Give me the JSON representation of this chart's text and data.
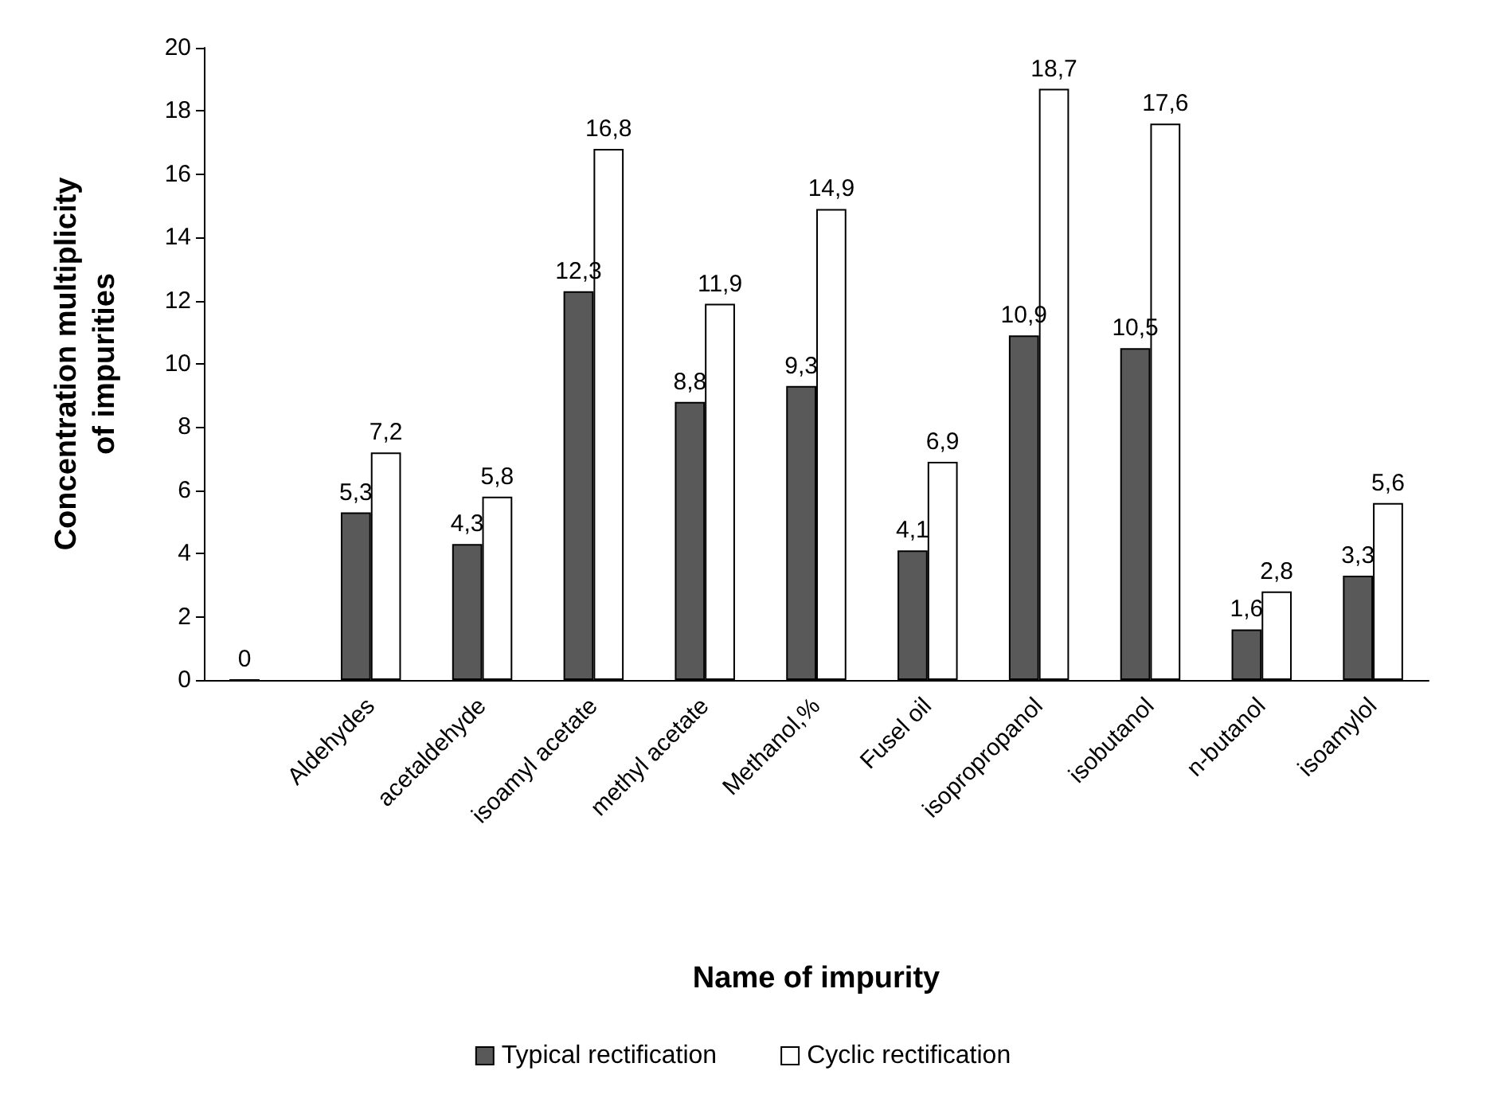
{
  "chart_data": {
    "type": "bar",
    "xlabel": "Name of impurity",
    "ylabel": "Concentration multiplicity\nof impurities",
    "categories": [
      null,
      "Aldehydes",
      "acetaldehyde",
      "isoamyl acetate",
      "methyl acetate",
      "Methanol,%",
      "Fusel oil",
      "isopropropanol",
      "isobutanol",
      "n-butanol",
      "isoamylol"
    ],
    "series": [
      {
        "name": "Typical rectification",
        "color": "#595959",
        "values": [
          0,
          5.3,
          4.3,
          12.3,
          8.8,
          9.3,
          4.1,
          10.9,
          10.5,
          1.6,
          3.3
        ],
        "value_labels": [
          "0",
          "5,3",
          "4,3",
          "12,3",
          "8,8",
          "9,3",
          "4,1",
          "10,9",
          "10,5",
          "1,6",
          "3,3"
        ]
      },
      {
        "name": "Cyclic rectification",
        "color": "#ffffff",
        "values": [
          null,
          7.2,
          5.8,
          16.8,
          11.9,
          14.9,
          6.9,
          18.7,
          17.6,
          2.8,
          5.6
        ],
        "value_labels": [
          null,
          "7,2",
          "5,8",
          "16,8",
          "11,9",
          "14,9",
          "6,9",
          "18,7",
          "17,6",
          "2,8",
          "5,6"
        ]
      }
    ],
    "ylim": [
      0,
      20
    ],
    "yticks": [
      0,
      2,
      4,
      6,
      8,
      10,
      12,
      14,
      16,
      18,
      20
    ],
    "grid": false,
    "legend": "bottom"
  }
}
